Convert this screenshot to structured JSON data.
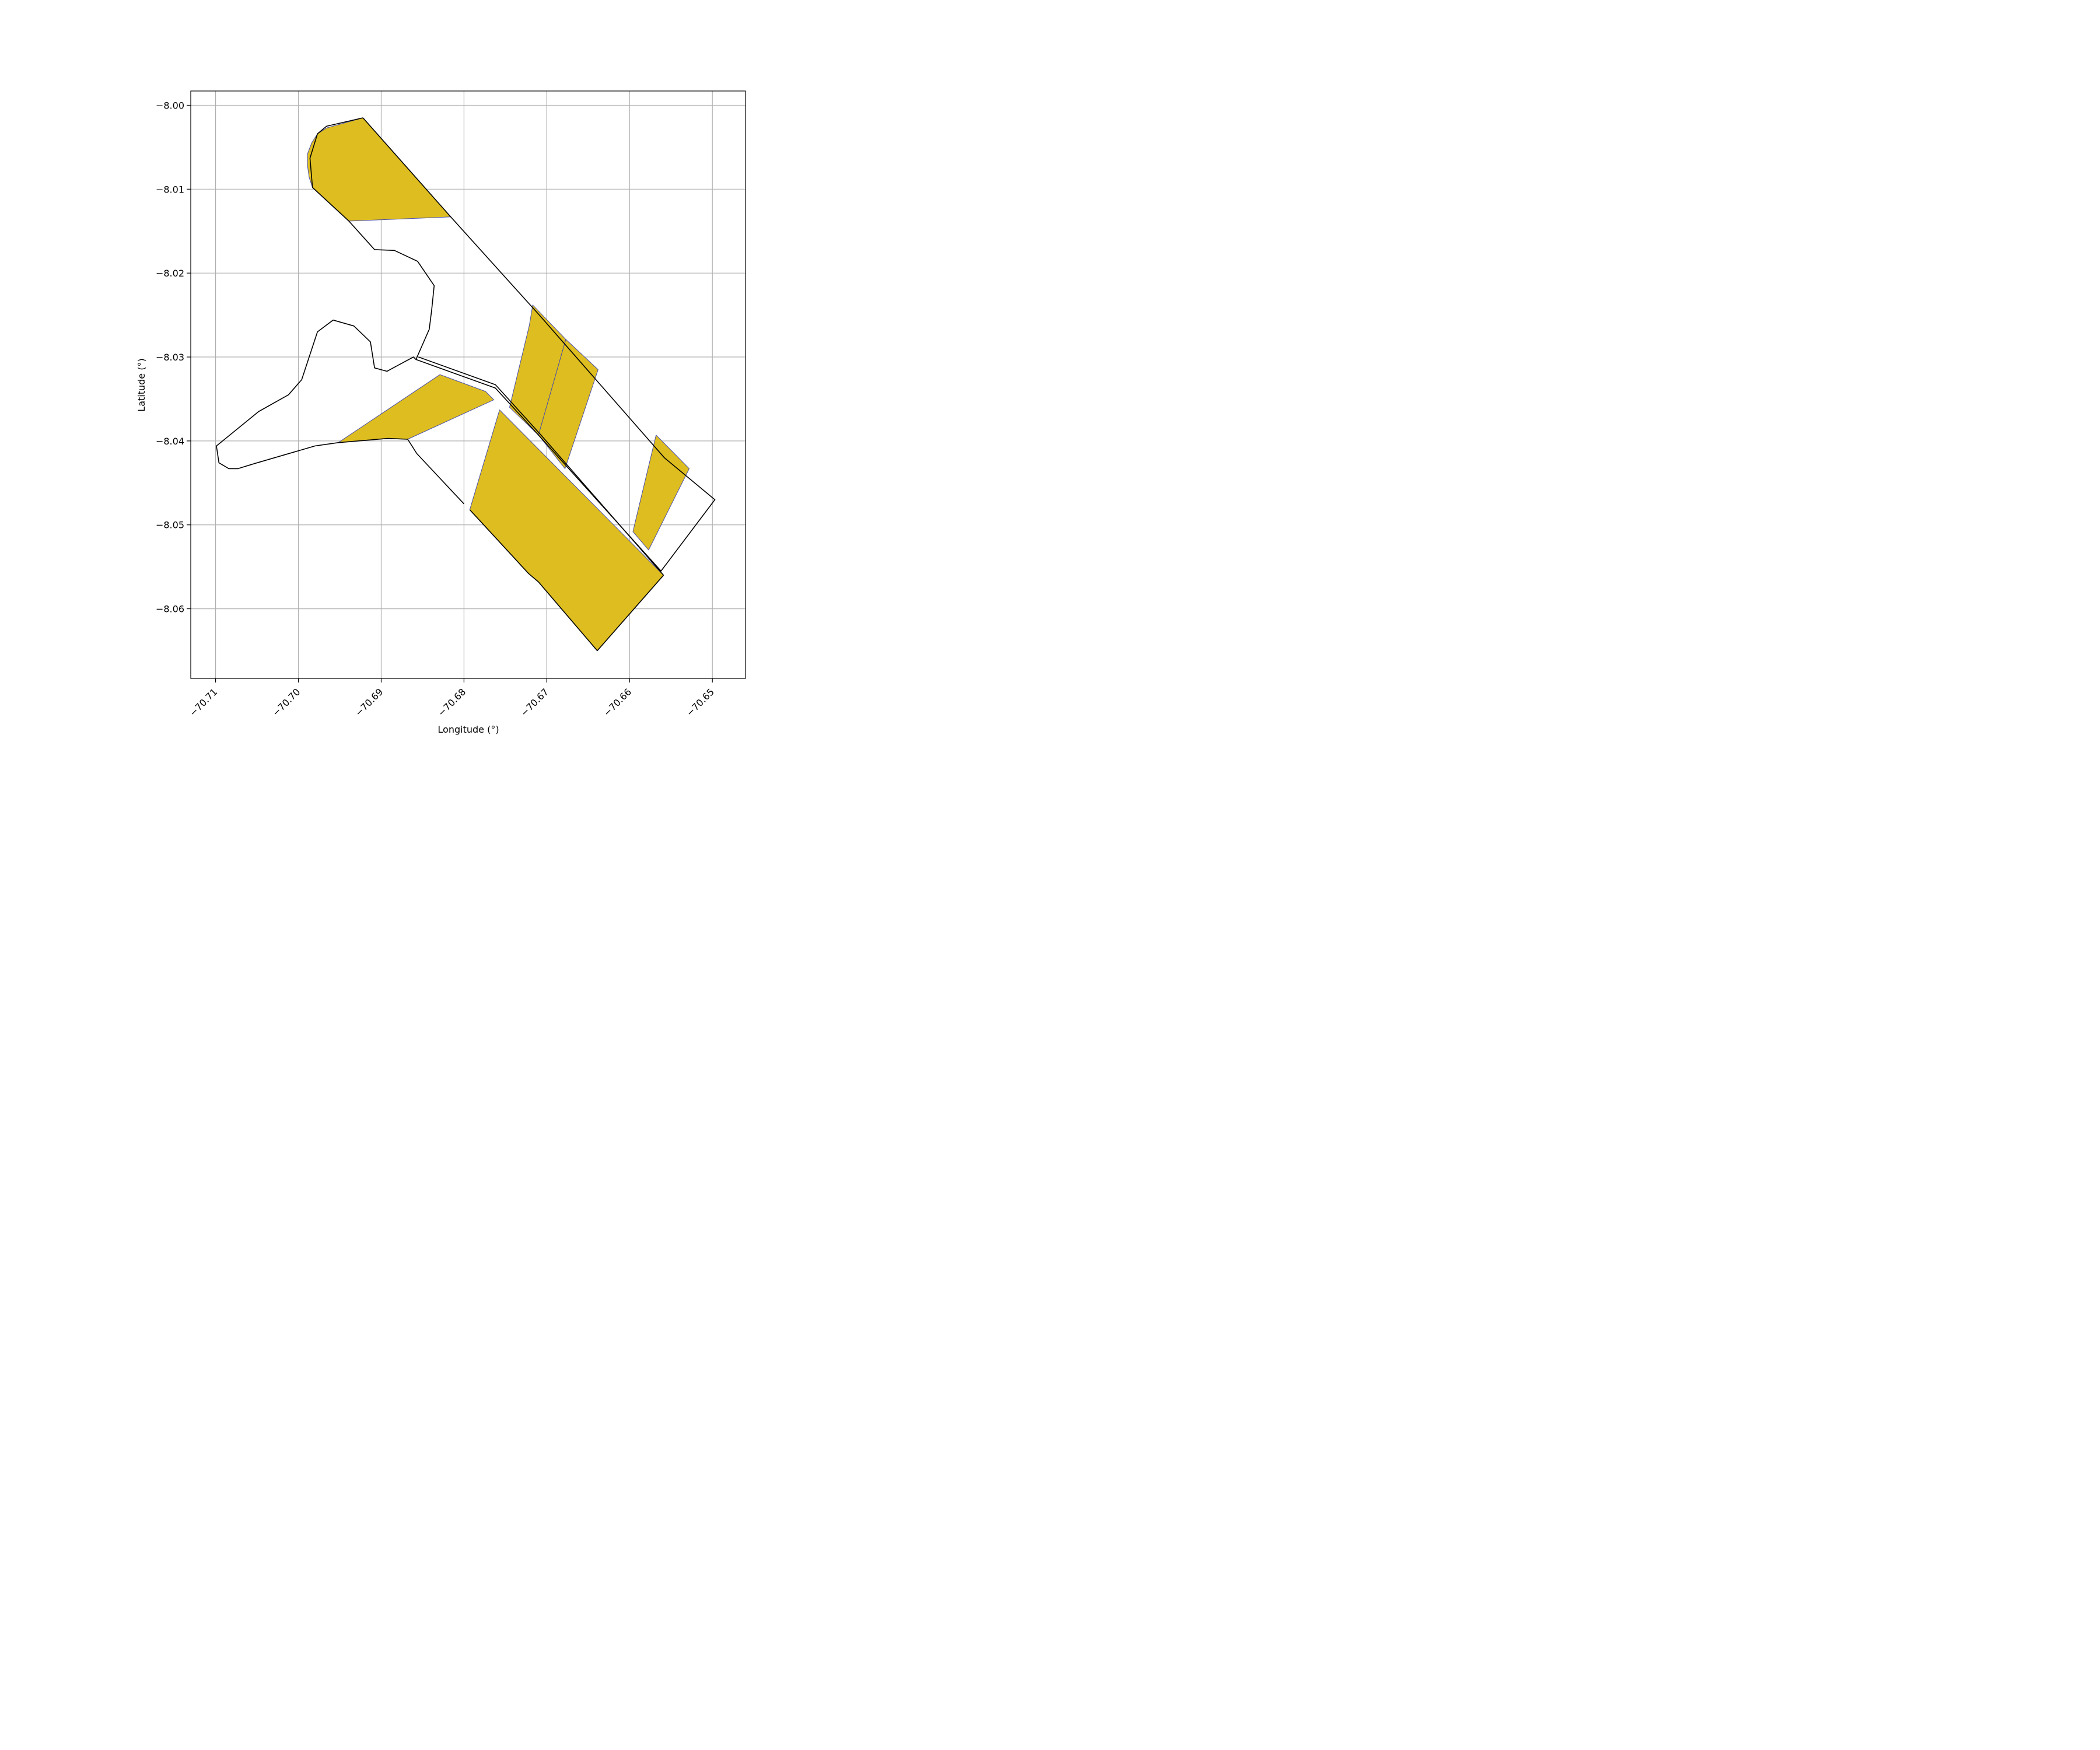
{
  "chart_data": {
    "type": "map",
    "xlabel": "Longitude (°)",
    "ylabel": "Latitude (°)",
    "xlim": [
      -70.713,
      -70.646
    ],
    "ylim": [
      -8.0683,
      -7.9983
    ],
    "xticks": [
      -70.71,
      -70.7,
      -70.69,
      -70.68,
      -70.67,
      -70.66,
      -70.65
    ],
    "xtick_labels": [
      "−70.71",
      "−70.70",
      "−70.69",
      "−70.68",
      "−70.67",
      "−70.66",
      "−70.65"
    ],
    "yticks": [
      -8.0,
      -8.01,
      -8.02,
      -8.03,
      -8.04,
      -8.05,
      -8.06
    ],
    "ytick_labels": [
      "−8.00",
      "−8.01",
      "−8.02",
      "−8.03",
      "−8.04",
      "−8.05",
      "−8.06"
    ],
    "grid": true,
    "fill_color": "#DDBD1F",
    "fill_edge_color": "#4B4FA8",
    "outline_color": "#000000",
    "filled_regions": [
      [
        [
          -70.6922,
          -8.0015
        ],
        [
          -70.6966,
          -8.0027
        ],
        [
          -70.6977,
          -8.0034
        ],
        [
          -70.6984,
          -8.0045
        ],
        [
          -70.6989,
          -8.0058
        ],
        [
          -70.6989,
          -8.0072
        ],
        [
          -70.6987,
          -8.0086
        ],
        [
          -70.6983,
          -8.0098
        ],
        [
          -70.6939,
          -8.0138
        ],
        [
          -70.6816,
          -8.0133
        ]
      ],
      [
        [
          -70.6717,
          -8.0238
        ],
        [
          -70.6677,
          -8.0279
        ],
        [
          -70.671,
          -8.0393
        ],
        [
          -70.6745,
          -8.036
        ],
        [
          -70.6721,
          -8.0262
        ]
      ],
      [
        [
          -70.6677,
          -8.0279
        ],
        [
          -70.6638,
          -8.0315
        ],
        [
          -70.6678,
          -8.0433
        ],
        [
          -70.671,
          -8.0393
        ]
      ],
      [
        [
          -70.6568,
          -8.0393
        ],
        [
          -70.6528,
          -8.0433
        ],
        [
          -70.6577,
          -8.053
        ],
        [
          -70.6596,
          -8.0508
        ]
      ],
      [
        [
          -70.6829,
          -8.0321
        ],
        [
          -70.6774,
          -8.0341
        ],
        [
          -70.6764,
          -8.0351
        ],
        [
          -70.6868,
          -8.0398
        ],
        [
          -70.6892,
          -8.0397
        ],
        [
          -70.6952,
          -8.0402
        ]
      ],
      [
        [
          -70.6757,
          -8.0363
        ],
        [
          -70.6793,
          -8.0482
        ],
        [
          -70.6722,
          -8.0558
        ],
        [
          -70.671,
          -8.0568
        ],
        [
          -70.6639,
          -8.065
        ],
        [
          -70.6559,
          -8.056
        ]
      ]
    ],
    "outline_paths": [
      [
        [
          -70.6922,
          -8.0015
        ],
        [
          -70.6816,
          -8.0133
        ],
        [
          -70.6709,
          -8.025
        ],
        [
          -70.6558,
          -8.042
        ],
        [
          -70.6497,
          -8.047
        ],
        [
          -70.6562,
          -8.0555
        ],
        [
          -70.671,
          -8.0393
        ],
        [
          -70.6762,
          -8.0337
        ],
        [
          -70.6858,
          -8.0303
        ],
        [
          -70.6861,
          -8.03
        ],
        [
          -70.688,
          -8.031
        ]
      ],
      [
        [
          -70.688,
          -8.031
        ],
        [
          -70.6893,
          -8.0317
        ],
        [
          -70.6908,
          -8.0313
        ],
        [
          -70.6913,
          -8.0282
        ],
        [
          -70.6933,
          -8.0263
        ],
        [
          -70.6958,
          -8.0256
        ],
        [
          -70.6977,
          -8.027
        ],
        [
          -70.6996,
          -8.0327
        ],
        [
          -70.7012,
          -8.0345
        ],
        [
          -70.7048,
          -8.0365
        ],
        [
          -70.7099,
          -8.0406
        ],
        [
          -70.7096,
          -8.0426
        ],
        [
          -70.7084,
          -8.0433
        ],
        [
          -70.7073,
          -8.0433
        ],
        [
          -70.7053,
          -8.0427
        ],
        [
          -70.698,
          -8.0406
        ],
        [
          -70.6952,
          -8.0402
        ],
        [
          -70.6892,
          -8.0397
        ],
        [
          -70.6868,
          -8.0398
        ],
        [
          -70.6857,
          -8.0415
        ],
        [
          -70.68,
          -8.0475
        ]
      ],
      [
        [
          -70.6858,
          -8.0303
        ],
        [
          -70.6842,
          -8.0267
        ],
        [
          -70.6839,
          -8.0244
        ],
        [
          -70.6836,
          -8.0215
        ],
        [
          -70.6856,
          -8.0186
        ],
        [
          -70.6884,
          -8.0173
        ],
        [
          -70.6908,
          -8.0172
        ],
        [
          -70.6939,
          -8.0138
        ],
        [
          -70.6983,
          -8.0098
        ],
        [
          -70.6986,
          -8.0063
        ],
        [
          -70.6977,
          -8.0034
        ],
        [
          -70.6966,
          -8.0025
        ],
        [
          -70.6922,
          -8.0015
        ]
      ],
      [
        [
          -70.6855,
          -8.03
        ],
        [
          -70.6762,
          -8.0333
        ],
        [
          -70.6707,
          -8.0393
        ],
        [
          -70.6559,
          -8.056
        ]
      ],
      [
        [
          -70.6793,
          -8.0482
        ],
        [
          -70.6722,
          -8.0558
        ],
        [
          -70.671,
          -8.0568
        ],
        [
          -70.6639,
          -8.065
        ],
        [
          -70.6559,
          -8.056
        ]
      ]
    ]
  }
}
